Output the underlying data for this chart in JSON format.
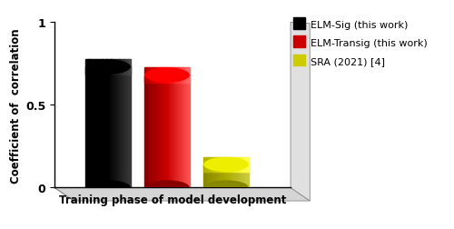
{
  "values": [
    0.73,
    0.68,
    0.14
  ],
  "bar_colors_main": [
    "#000000",
    "#cc0000",
    "#aaaa00"
  ],
  "bar_colors_highlight": [
    "#3a3a3a",
    "#ff5555",
    "#cccc44"
  ],
  "bar_colors_shadow": [
    "#000000",
    "#880000",
    "#888800"
  ],
  "legend_labels": [
    "ELM-Sig (this work)",
    "ELM-Transig (this work)",
    "SRA (2021) [4]"
  ],
  "legend_colors": [
    "#000000",
    "#cc0000",
    "#cccc00"
  ],
  "xlabel": "Training phase of model development",
  "ylabel": "Coefficient of  correlation",
  "ylim": [
    0,
    1
  ],
  "yticks": [
    0,
    0.5,
    1
  ],
  "bar_width": 0.42,
  "bar_positions": [
    1.0,
    1.55,
    2.1
  ],
  "background_color": "#ffffff",
  "axes_color": "#333333",
  "floor_color": "#d8d8d8",
  "wall_color": "#e8e8e8"
}
